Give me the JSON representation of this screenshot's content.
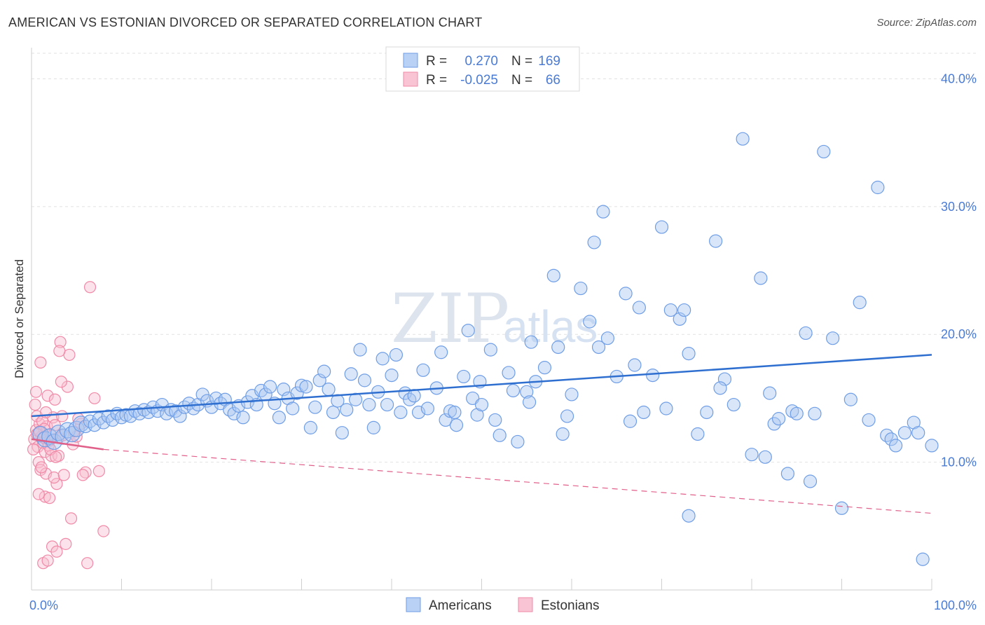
{
  "header": {
    "title": "AMERICAN VS ESTONIAN DIVORCED OR SEPARATED CORRELATION CHART",
    "source": "Source: ZipAtlas.com"
  },
  "watermark": {
    "zip": "ZIP",
    "atlas": "atlas"
  },
  "colors": {
    "americans": "#6f9ee6",
    "americans_line": "#2f6fd0",
    "estonians": "#f08aa8",
    "estonians_line": "#e0608a",
    "tick": "#4a7bd4",
    "grid": "#e2e2e2"
  },
  "legend": {
    "rows": [
      {
        "r_label": "R =",
        "r_value": "0.270",
        "n_label": "N =",
        "n_value": "169"
      },
      {
        "r_label": "R =",
        "r_value": "-0.025",
        "n_label": "N =",
        "n_value": "66"
      }
    ]
  },
  "bottom_legend": [
    "Americans",
    "Estonians"
  ],
  "chart_data": {
    "type": "scatter",
    "title": "AMERICAN VS ESTONIAN DIVORCED OR SEPARATED CORRELATION CHART",
    "xlabel": "",
    "ylabel": "Divorced or Separated",
    "xlim": [
      0,
      100
    ],
    "ylim": [
      0,
      42
    ],
    "x_tick_labels": [
      "0.0%",
      "100.0%"
    ],
    "y_ticks": [
      10,
      20,
      30,
      40
    ],
    "y_tick_labels": [
      "10.0%",
      "20.0%",
      "30.0%",
      "40.0%"
    ],
    "grid": true,
    "legend_position": "top-center",
    "series": [
      {
        "name": "Americans",
        "r": 0.27,
        "n": 169,
        "trend": {
          "x": [
            0,
            100
          ],
          "y": [
            13.6,
            18.4
          ]
        },
        "points": [
          [
            1,
            12.2
          ],
          [
            1.5,
            11.8
          ],
          [
            2,
            12.0
          ],
          [
            2.5,
            11.6
          ],
          [
            3,
            12.3
          ],
          [
            3.5,
            12.0
          ],
          [
            4,
            12.5
          ],
          [
            4.5,
            12.2
          ],
          [
            5,
            12.6
          ],
          [
            5.5,
            13.0
          ],
          [
            6,
            12.8
          ],
          [
            6.5,
            13.2
          ],
          [
            7,
            12.9
          ],
          [
            7.5,
            13.4
          ],
          [
            8,
            13.1
          ],
          [
            8.5,
            13.6
          ],
          [
            9,
            13.3
          ],
          [
            9.5,
            13.8
          ],
          [
            10,
            13.5
          ],
          [
            10.5,
            13.7
          ],
          [
            11,
            13.6
          ],
          [
            11.5,
            14.0
          ],
          [
            12,
            13.8
          ],
          [
            12.5,
            14.1
          ],
          [
            13,
            13.9
          ],
          [
            13.5,
            14.3
          ],
          [
            14,
            14.0
          ],
          [
            14.5,
            14.5
          ],
          [
            15,
            13.8
          ],
          [
            15.5,
            14.1
          ],
          [
            16,
            14.0
          ],
          [
            16.5,
            13.6
          ],
          [
            17,
            14.3
          ],
          [
            17.5,
            14.6
          ],
          [
            18,
            14.2
          ],
          [
            18.5,
            14.5
          ],
          [
            19,
            15.3
          ],
          [
            19.5,
            14.8
          ],
          [
            20,
            14.3
          ],
          [
            20.5,
            15.0
          ],
          [
            21,
            14.6
          ],
          [
            21.5,
            14.9
          ],
          [
            22,
            14.1
          ],
          [
            22.5,
            13.8
          ],
          [
            23,
            14.4
          ],
          [
            23.5,
            13.5
          ],
          [
            24,
            14.7
          ],
          [
            24.5,
            15.2
          ],
          [
            25,
            14.5
          ],
          [
            25.5,
            15.6
          ],
          [
            26,
            15.3
          ],
          [
            26.5,
            15.9
          ],
          [
            27,
            14.6
          ],
          [
            27.5,
            13.5
          ],
          [
            28,
            15.7
          ],
          [
            28.5,
            15.0
          ],
          [
            29,
            14.2
          ],
          [
            29.5,
            15.4
          ],
          [
            30,
            16.0
          ],
          [
            30.5,
            15.9
          ],
          [
            31,
            12.7
          ],
          [
            31.5,
            14.3
          ],
          [
            32,
            16.4
          ],
          [
            32.5,
            17.1
          ],
          [
            33,
            15.7
          ],
          [
            33.5,
            13.9
          ],
          [
            34,
            14.8
          ],
          [
            34.5,
            12.3
          ],
          [
            35,
            14.1
          ],
          [
            35.5,
            16.9
          ],
          [
            36,
            14.9
          ],
          [
            36.5,
            18.8
          ],
          [
            37,
            16.4
          ],
          [
            37.5,
            14.5
          ],
          [
            38,
            12.7
          ],
          [
            38.5,
            15.5
          ],
          [
            39,
            18.1
          ],
          [
            39.5,
            14.5
          ],
          [
            40,
            16.8
          ],
          [
            40.5,
            18.4
          ],
          [
            41,
            13.9
          ],
          [
            41.5,
            15.4
          ],
          [
            42,
            14.9
          ],
          [
            42.5,
            15.2
          ],
          [
            43,
            13.9
          ],
          [
            43.5,
            17.2
          ],
          [
            44,
            14.2
          ],
          [
            45,
            15.8
          ],
          [
            45.5,
            18.6
          ],
          [
            46,
            13.3
          ],
          [
            46.5,
            14.0
          ],
          [
            47,
            13.9
          ],
          [
            48,
            16.7
          ],
          [
            48.5,
            20.3
          ],
          [
            49,
            15.0
          ],
          [
            49.5,
            13.7
          ],
          [
            50,
            14.5
          ],
          [
            51,
            18.8
          ],
          [
            52,
            12.1
          ],
          [
            53,
            17.0
          ],
          [
            53.5,
            15.6
          ],
          [
            54,
            11.6
          ],
          [
            55,
            15.5
          ],
          [
            55.5,
            19.4
          ],
          [
            56,
            16.3
          ],
          [
            57,
            17.4
          ],
          [
            58,
            24.6
          ],
          [
            58.5,
            19.0
          ],
          [
            59,
            12.2
          ],
          [
            60,
            15.3
          ],
          [
            61,
            23.6
          ],
          [
            62,
            21.0
          ],
          [
            62.5,
            27.2
          ],
          [
            63,
            19.0
          ],
          [
            63.5,
            29.6
          ],
          [
            64,
            19.7
          ],
          [
            65,
            16.7
          ],
          [
            66,
            23.2
          ],
          [
            67,
            17.6
          ],
          [
            67.5,
            22.1
          ],
          [
            68,
            13.9
          ],
          [
            69,
            16.8
          ],
          [
            70,
            28.4
          ],
          [
            71,
            21.9
          ],
          [
            72,
            21.2
          ],
          [
            72.5,
            21.9
          ],
          [
            73,
            18.5
          ],
          [
            74,
            12.2
          ],
          [
            75,
            13.9
          ],
          [
            76,
            27.3
          ],
          [
            77,
            16.5
          ],
          [
            78,
            14.5
          ],
          [
            79,
            35.3
          ],
          [
            80,
            10.6
          ],
          [
            81,
            24.4
          ],
          [
            81.5,
            10.4
          ],
          [
            82,
            15.4
          ],
          [
            82.5,
            13.0
          ],
          [
            83,
            13.4
          ],
          [
            84,
            9.1
          ],
          [
            84.5,
            14.0
          ],
          [
            85,
            13.8
          ],
          [
            86,
            20.1
          ],
          [
            86.5,
            8.5
          ],
          [
            87,
            13.8
          ],
          [
            88,
            34.3
          ],
          [
            89,
            19.7
          ],
          [
            90,
            6.4
          ],
          [
            91,
            14.9
          ],
          [
            92,
            22.5
          ],
          [
            93,
            13.3
          ],
          [
            94,
            31.5
          ],
          [
            95,
            12.1
          ],
          [
            95.5,
            11.8
          ],
          [
            96,
            11.3
          ],
          [
            97,
            12.3
          ],
          [
            98,
            13.1
          ],
          [
            98.5,
            12.3
          ],
          [
            99,
            2.4
          ],
          [
            100,
            11.3
          ],
          [
            73,
            5.8
          ],
          [
            76.5,
            15.8
          ],
          [
            70.5,
            14.2
          ],
          [
            66.5,
            13.2
          ],
          [
            59.5,
            13.6
          ],
          [
            55.3,
            14.7
          ],
          [
            51.5,
            13.3
          ],
          [
            49.8,
            16.3
          ],
          [
            47.2,
            12.9
          ]
        ]
      },
      {
        "name": "Estonians",
        "r": -0.025,
        "n": 66,
        "trend_solid": {
          "x": [
            0,
            8
          ],
          "y": [
            11.8,
            11.0
          ]
        },
        "trend_dashed": {
          "x": [
            8,
            100
          ],
          "y": [
            11.0,
            6.0
          ]
        },
        "points": [
          [
            0.3,
            11.8
          ],
          [
            0.5,
            12.5
          ],
          [
            0.7,
            11.2
          ],
          [
            0.9,
            13.0
          ],
          [
            1.1,
            12.0
          ],
          [
            1.3,
            11.5
          ],
          [
            1.5,
            10.8
          ],
          [
            1.7,
            12.8
          ],
          [
            1.9,
            11.3
          ],
          [
            2.1,
            12.2
          ],
          [
            0.4,
            14.5
          ],
          [
            0.6,
            13.6
          ],
          [
            0.8,
            10.0
          ],
          [
            1.0,
            9.4
          ],
          [
            1.2,
            13.2
          ],
          [
            1.4,
            12.6
          ],
          [
            1.6,
            9.1
          ],
          [
            1.8,
            15.2
          ],
          [
            2.0,
            11.7
          ],
          [
            2.2,
            10.5
          ],
          [
            2.4,
            13.5
          ],
          [
            2.6,
            12.9
          ],
          [
            2.8,
            8.3
          ],
          [
            3.0,
            11.9
          ],
          [
            0.5,
            15.5
          ],
          [
            1.0,
            17.8
          ],
          [
            1.5,
            7.3
          ],
          [
            2.0,
            7.2
          ],
          [
            2.5,
            8.8
          ],
          [
            3.0,
            10.5
          ],
          [
            3.2,
            19.4
          ],
          [
            3.4,
            13.6
          ],
          [
            3.6,
            9.0
          ],
          [
            3.8,
            3.6
          ],
          [
            4.0,
            15.9
          ],
          [
            4.2,
            18.4
          ],
          [
            4.4,
            5.6
          ],
          [
            4.6,
            11.4
          ],
          [
            5.0,
            12.0
          ],
          [
            5.5,
            13.0
          ],
          [
            6.0,
            9.2
          ],
          [
            6.5,
            23.7
          ],
          [
            7.0,
            15.0
          ],
          [
            7.5,
            9.3
          ],
          [
            8.0,
            4.6
          ],
          [
            0.6,
            12.2
          ],
          [
            1.1,
            9.6
          ],
          [
            1.6,
            13.9
          ],
          [
            2.1,
            11.0
          ],
          [
            2.6,
            14.9
          ],
          [
            3.1,
            18.7
          ],
          [
            0.8,
            7.5
          ],
          [
            1.3,
            2.1
          ],
          [
            1.8,
            2.3
          ],
          [
            2.3,
            3.4
          ],
          [
            2.8,
            3.0
          ],
          [
            3.3,
            16.3
          ],
          [
            5.7,
            9.0
          ],
          [
            6.2,
            2.1
          ],
          [
            5.2,
            13.4
          ],
          [
            0.2,
            11.0
          ],
          [
            0.9,
            12.4
          ],
          [
            1.4,
            11.9
          ],
          [
            2.7,
            10.4
          ],
          [
            3.5,
            12.1
          ],
          [
            4.7,
            12.4
          ]
        ]
      }
    ]
  }
}
